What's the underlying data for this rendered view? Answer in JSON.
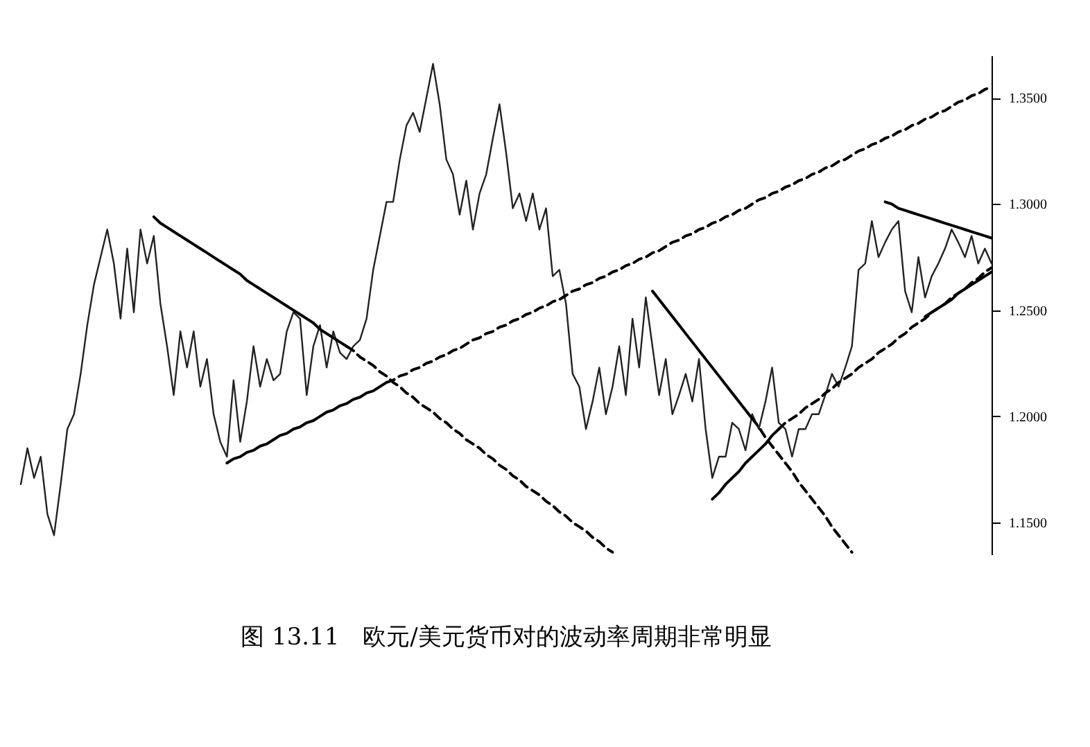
{
  "chart_data": {
    "type": "line",
    "title": "图 13.11　欧元/美元货币对的波动率周期非常明显",
    "categories": [
      null,
      null,
      null,
      null,
      null,
      null,
      null,
      null,
      null,
      null,
      null,
      null,
      null,
      null,
      null,
      null,
      null,
      null,
      null,
      null,
      null,
      null,
      null,
      null,
      null,
      null,
      null,
      null,
      null,
      null,
      null,
      null,
      null,
      null,
      null,
      null,
      null,
      null,
      null,
      null,
      null,
      null,
      null,
      null,
      null,
      null,
      null,
      null,
      null,
      null,
      null,
      null,
      null,
      null,
      null,
      null,
      null,
      null,
      null,
      null,
      null,
      null,
      null,
      null,
      null,
      null,
      null,
      null,
      null,
      null,
      null,
      null,
      null,
      null,
      null,
      null,
      null,
      null,
      null,
      null,
      null,
      null,
      null,
      null,
      null,
      null,
      null,
      null,
      null,
      null,
      null,
      null,
      null,
      null,
      null,
      null,
      null,
      null,
      null,
      null,
      null,
      null,
      null,
      null,
      null,
      null,
      null,
      null,
      null,
      null,
      null,
      null,
      null,
      null,
      null,
      null,
      null,
      null,
      null,
      null,
      null,
      null,
      null,
      null,
      null,
      null,
      null,
      null,
      null,
      null,
      null,
      null,
      null,
      null,
      null,
      null,
      null,
      null,
      null,
      null,
      null,
      null,
      null,
      null,
      null,
      null,
      null
    ],
    "series": [
      {
        "color": "#222222",
        "line_style": "solid",
        "values": [
          1.168,
          1.185,
          1.171,
          1.181,
          1.154,
          1.144,
          1.168,
          1.194,
          1.201,
          1.22,
          1.243,
          1.262,
          1.275,
          1.288,
          1.272,
          1.246,
          1.279,
          1.249,
          1.288,
          1.272,
          1.285,
          1.253,
          1.233,
          1.21,
          1.24,
          1.223,
          1.24,
          1.214,
          1.227,
          1.201,
          1.188,
          1.181,
          1.217,
          1.188,
          1.207,
          1.233,
          1.214,
          1.227,
          1.217,
          1.22,
          1.24,
          1.249,
          1.246,
          1.21,
          1.233,
          1.243,
          1.223,
          1.24,
          1.23,
          1.227,
          1.233,
          1.236,
          1.246,
          1.269,
          1.285,
          1.301,
          1.301,
          1.321,
          1.337,
          1.343,
          1.334,
          1.35,
          1.366,
          1.347,
          1.321,
          1.314,
          1.295,
          1.311,
          1.288,
          1.305,
          1.314,
          1.331,
          1.347,
          1.324,
          1.298,
          1.305,
          1.292,
          1.305,
          1.288,
          1.298,
          1.266,
          1.269,
          1.253,
          1.22,
          1.214,
          1.194,
          1.207,
          1.223,
          1.201,
          1.214,
          1.233,
          1.21,
          1.246,
          1.223,
          1.256,
          1.233,
          1.21,
          1.227,
          1.201,
          1.21,
          1.22,
          1.207,
          1.227,
          1.194,
          1.171,
          1.181,
          1.181,
          1.197,
          1.194,
          1.184,
          1.201,
          1.194,
          1.207,
          1.223,
          1.197,
          1.194,
          1.181,
          1.194,
          1.194,
          1.201,
          1.201,
          1.21,
          1.22,
          1.214,
          1.223,
          1.233,
          1.269,
          1.272,
          1.292,
          1.275,
          1.282,
          1.288,
          1.292,
          1.259,
          1.249,
          1.275,
          1.256,
          1.266,
          1.272,
          1.279,
          1.288,
          1.282,
          1.275,
          1.285,
          1.272,
          1.279,
          1.272
        ]
      },
      {
        "color": "#000000",
        "line_style": "solid",
        "values": [
          null,
          null,
          null,
          null,
          null,
          null,
          null,
          null,
          null,
          null,
          null,
          null,
          null,
          null,
          null,
          null,
          null,
          null,
          null,
          null,
          1.294,
          1.291,
          1.289,
          1.287,
          1.285,
          1.283,
          1.281,
          1.279,
          1.277,
          1.275,
          1.273,
          1.271,
          1.269,
          1.267,
          1.264,
          1.262,
          1.26,
          1.258,
          1.256,
          1.254,
          1.252,
          1.25,
          1.248,
          1.246,
          1.244,
          1.241,
          1.239,
          1.237,
          1.235,
          1.233,
          null,
          null,
          null,
          null,
          null,
          null,
          null,
          null,
          null,
          null,
          null,
          null,
          null,
          null,
          null,
          null,
          null,
          null,
          null,
          null,
          null,
          null,
          null,
          null,
          null,
          null,
          null,
          null,
          null,
          null,
          null,
          null,
          null,
          null,
          null,
          null,
          null,
          null,
          null,
          null,
          null,
          null,
          null,
          null,
          null,
          null,
          null,
          null,
          null,
          null,
          null,
          null,
          null,
          null,
          null,
          null,
          null,
          null,
          null,
          null,
          null,
          null,
          null,
          null,
          null,
          null,
          null,
          null,
          null,
          null,
          null,
          null,
          null,
          null,
          null,
          null,
          null,
          null,
          null,
          null,
          null,
          null,
          null,
          null,
          null,
          null,
          null,
          null,
          null,
          null,
          null,
          null,
          null,
          null,
          null,
          null,
          null
        ]
      },
      {
        "color": "#000000",
        "line_style": "solid",
        "values": [
          null,
          null,
          null,
          null,
          null,
          null,
          null,
          null,
          null,
          null,
          null,
          null,
          null,
          null,
          null,
          null,
          null,
          null,
          null,
          null,
          null,
          null,
          null,
          null,
          null,
          null,
          null,
          null,
          null,
          null,
          null,
          1.178,
          1.18,
          1.181,
          1.183,
          1.184,
          1.186,
          1.187,
          1.189,
          1.191,
          1.192,
          1.194,
          1.195,
          1.197,
          1.198,
          1.2,
          1.202,
          1.203,
          1.205,
          1.206,
          1.208,
          1.209,
          1.211,
          1.212,
          1.214,
          1.216,
          null,
          null,
          null,
          null,
          null,
          null,
          null,
          null,
          null,
          null,
          null,
          null,
          null,
          null,
          null,
          null,
          null,
          null,
          null,
          null,
          null,
          null,
          null,
          null,
          null,
          null,
          null,
          null,
          null,
          null,
          null,
          null,
          null,
          null,
          null,
          null,
          null,
          null,
          null,
          null,
          null,
          null,
          null,
          null,
          null,
          null,
          null,
          null,
          null,
          null,
          null,
          null,
          null,
          null,
          null,
          null,
          null,
          null,
          null,
          null,
          null,
          null,
          null,
          null,
          null,
          null,
          null,
          null,
          null,
          null,
          null,
          null,
          null,
          null,
          null,
          null,
          null,
          null,
          null,
          null,
          null,
          null,
          null,
          null,
          null,
          null,
          null,
          null,
          null,
          null,
          null
        ]
      },
      {
        "color": "#000000",
        "line_style": "dashed",
        "values": [
          null,
          null,
          null,
          null,
          null,
          null,
          null,
          null,
          null,
          null,
          null,
          null,
          null,
          null,
          null,
          null,
          null,
          null,
          null,
          null,
          null,
          null,
          null,
          null,
          null,
          null,
          null,
          null,
          null,
          null,
          null,
          null,
          null,
          null,
          null,
          null,
          null,
          null,
          null,
          null,
          null,
          null,
          null,
          null,
          null,
          null,
          null,
          null,
          null,
          1.233,
          1.231,
          1.228,
          1.226,
          1.224,
          1.221,
          1.219,
          1.216,
          1.214,
          1.211,
          1.209,
          1.206,
          1.204,
          1.202,
          1.199,
          1.197,
          1.194,
          1.192,
          1.189,
          1.187,
          1.185,
          1.182,
          1.18,
          1.177,
          1.175,
          1.172,
          1.17,
          1.167,
          1.165,
          1.163,
          1.16,
          1.158,
          1.155,
          1.153,
          1.15,
          1.148,
          1.146,
          1.143,
          1.141,
          1.138,
          1.136,
          null,
          null,
          null,
          null,
          null,
          null,
          null,
          null,
          null,
          null,
          null,
          null,
          null,
          null,
          null,
          null,
          null,
          null,
          null,
          null,
          null,
          null,
          null,
          null,
          null,
          null,
          null,
          null,
          null,
          null,
          null,
          null,
          null,
          null,
          null,
          null,
          null,
          null,
          null,
          null,
          null,
          null,
          null,
          null,
          null,
          null,
          null,
          null,
          null,
          null,
          null,
          null,
          null,
          null,
          null,
          null,
          null
        ]
      },
      {
        "color": "#000000",
        "line_style": "dashed",
        "values": [
          null,
          null,
          null,
          null,
          null,
          null,
          null,
          null,
          null,
          null,
          null,
          null,
          null,
          null,
          null,
          null,
          null,
          null,
          null,
          null,
          null,
          null,
          null,
          null,
          null,
          null,
          null,
          null,
          null,
          null,
          null,
          null,
          null,
          null,
          null,
          null,
          null,
          null,
          null,
          null,
          null,
          null,
          null,
          null,
          null,
          null,
          null,
          null,
          null,
          null,
          null,
          null,
          null,
          null,
          null,
          1.216,
          1.217,
          1.219,
          1.22,
          1.222,
          1.223,
          1.225,
          1.226,
          1.228,
          1.229,
          1.231,
          1.232,
          1.234,
          1.236,
          1.237,
          1.239,
          1.24,
          1.242,
          1.243,
          1.245,
          1.246,
          1.248,
          1.249,
          1.251,
          1.252,
          1.254,
          1.255,
          1.257,
          1.259,
          1.26,
          1.262,
          1.263,
          1.265,
          1.266,
          1.268,
          1.269,
          1.271,
          1.272,
          1.274,
          1.275,
          1.277,
          1.278,
          1.28,
          1.282,
          1.283,
          1.285,
          1.286,
          1.288,
          1.289,
          1.291,
          1.292,
          1.294,
          1.295,
          1.297,
          1.298,
          1.3,
          1.302,
          1.303,
          1.305,
          1.306,
          1.308,
          1.309,
          1.311,
          1.312,
          1.314,
          1.315,
          1.317,
          1.318,
          1.32,
          1.321,
          1.323,
          1.325,
          1.326,
          1.328,
          1.329,
          1.331,
          1.332,
          1.334,
          1.335,
          1.337,
          1.338,
          1.34,
          1.341,
          1.343,
          1.344,
          1.346,
          1.348,
          1.349,
          1.351,
          1.352,
          1.354,
          1.355
        ]
      },
      {
        "color": "#000000",
        "line_style": "solid",
        "values": [
          null,
          null,
          null,
          null,
          null,
          null,
          null,
          null,
          null,
          null,
          null,
          null,
          null,
          null,
          null,
          null,
          null,
          null,
          null,
          null,
          null,
          null,
          null,
          null,
          null,
          null,
          null,
          null,
          null,
          null,
          null,
          null,
          null,
          null,
          null,
          null,
          null,
          null,
          null,
          null,
          null,
          null,
          null,
          null,
          null,
          null,
          null,
          null,
          null,
          null,
          null,
          null,
          null,
          null,
          null,
          null,
          null,
          null,
          null,
          null,
          null,
          null,
          null,
          null,
          null,
          null,
          null,
          null,
          null,
          null,
          null,
          null,
          null,
          null,
          null,
          null,
          null,
          null,
          null,
          null,
          null,
          null,
          null,
          null,
          null,
          null,
          null,
          null,
          null,
          null,
          null,
          null,
          null,
          null,
          null,
          1.259,
          1.255,
          1.251,
          1.247,
          1.243,
          1.239,
          1.235,
          1.231,
          1.227,
          1.223,
          1.219,
          1.215,
          1.211,
          1.207,
          1.203,
          1.199,
          null,
          null,
          null,
          null,
          null,
          null,
          null,
          null,
          null,
          null,
          null,
          null,
          null,
          null,
          null,
          null,
          null,
          null,
          null,
          null,
          null,
          null,
          null,
          null,
          null,
          null,
          null,
          null,
          null,
          null,
          null,
          null,
          null,
          null,
          null,
          null
        ]
      },
      {
        "color": "#000000",
        "line_style": "dashed",
        "values": [
          null,
          null,
          null,
          null,
          null,
          null,
          null,
          null,
          null,
          null,
          null,
          null,
          null,
          null,
          null,
          null,
          null,
          null,
          null,
          null,
          null,
          null,
          null,
          null,
          null,
          null,
          null,
          null,
          null,
          null,
          null,
          null,
          null,
          null,
          null,
          null,
          null,
          null,
          null,
          null,
          null,
          null,
          null,
          null,
          null,
          null,
          null,
          null,
          null,
          null,
          null,
          null,
          null,
          null,
          null,
          null,
          null,
          null,
          null,
          null,
          null,
          null,
          null,
          null,
          null,
          null,
          null,
          null,
          null,
          null,
          null,
          null,
          null,
          null,
          null,
          null,
          null,
          null,
          null,
          null,
          null,
          null,
          null,
          null,
          null,
          null,
          null,
          null,
          null,
          null,
          null,
          null,
          null,
          null,
          null,
          null,
          null,
          null,
          null,
          null,
          null,
          null,
          null,
          null,
          null,
          null,
          null,
          null,
          null,
          null,
          1.199,
          1.195,
          1.19,
          1.186,
          1.182,
          1.178,
          1.174,
          1.169,
          1.165,
          1.161,
          1.157,
          1.153,
          1.148,
          1.144,
          1.14,
          1.136,
          null,
          null,
          null,
          null,
          null,
          null,
          null,
          null,
          null,
          null,
          null,
          null,
          null,
          null,
          null,
          null,
          null,
          null,
          null,
          null,
          null
        ]
      },
      {
        "color": "#000000",
        "line_style": "solid",
        "values": [
          null,
          null,
          null,
          null,
          null,
          null,
          null,
          null,
          null,
          null,
          null,
          null,
          null,
          null,
          null,
          null,
          null,
          null,
          null,
          null,
          null,
          null,
          null,
          null,
          null,
          null,
          null,
          null,
          null,
          null,
          null,
          null,
          null,
          null,
          null,
          null,
          null,
          null,
          null,
          null,
          null,
          null,
          null,
          null,
          null,
          null,
          null,
          null,
          null,
          null,
          null,
          null,
          null,
          null,
          null,
          null,
          null,
          null,
          null,
          null,
          null,
          null,
          null,
          null,
          null,
          null,
          null,
          null,
          null,
          null,
          null,
          null,
          null,
          null,
          null,
          null,
          null,
          null,
          null,
          null,
          null,
          null,
          null,
          null,
          null,
          null,
          null,
          null,
          null,
          null,
          null,
          null,
          null,
          null,
          null,
          null,
          null,
          null,
          null,
          null,
          null,
          null,
          null,
          null,
          1.161,
          1.164,
          1.168,
          1.171,
          1.174,
          1.178,
          1.181,
          1.184,
          1.187,
          1.191,
          1.194,
          null,
          null,
          null,
          null,
          null,
          null,
          null,
          null,
          null,
          null,
          null,
          null,
          null,
          null,
          null,
          null,
          null,
          null,
          null,
          null,
          null,
          null,
          null,
          null,
          null,
          null,
          null,
          null,
          null,
          null,
          null,
          null
        ]
      },
      {
        "color": "#000000",
        "line_style": "dashed",
        "values": [
          null,
          null,
          null,
          null,
          null,
          null,
          null,
          null,
          null,
          null,
          null,
          null,
          null,
          null,
          null,
          null,
          null,
          null,
          null,
          null,
          null,
          null,
          null,
          null,
          null,
          null,
          null,
          null,
          null,
          null,
          null,
          null,
          null,
          null,
          null,
          null,
          null,
          null,
          null,
          null,
          null,
          null,
          null,
          null,
          null,
          null,
          null,
          null,
          null,
          null,
          null,
          null,
          null,
          null,
          null,
          null,
          null,
          null,
          null,
          null,
          null,
          null,
          null,
          null,
          null,
          null,
          null,
          null,
          null,
          null,
          null,
          null,
          null,
          null,
          null,
          null,
          null,
          null,
          null,
          null,
          null,
          null,
          null,
          null,
          null,
          null,
          null,
          null,
          null,
          null,
          null,
          null,
          null,
          null,
          null,
          null,
          null,
          null,
          null,
          null,
          null,
          null,
          null,
          null,
          null,
          null,
          null,
          null,
          null,
          null,
          null,
          null,
          null,
          null,
          1.194,
          1.197,
          1.199,
          1.201,
          1.204,
          1.206,
          1.208,
          1.211,
          1.213,
          1.216,
          1.218,
          1.22,
          1.223,
          1.225,
          1.227,
          1.23,
          1.232,
          1.234,
          1.237,
          1.239,
          1.242,
          1.244,
          1.246,
          1.249,
          1.251,
          1.253,
          1.256,
          1.258,
          1.26,
          1.263,
          1.265,
          1.268,
          1.27
        ]
      },
      {
        "color": "#000000",
        "line_style": "solid",
        "values": [
          null,
          null,
          null,
          null,
          null,
          null,
          null,
          null,
          null,
          null,
          null,
          null,
          null,
          null,
          null,
          null,
          null,
          null,
          null,
          null,
          null,
          null,
          null,
          null,
          null,
          null,
          null,
          null,
          null,
          null,
          null,
          null,
          null,
          null,
          null,
          null,
          null,
          null,
          null,
          null,
          null,
          null,
          null,
          null,
          null,
          null,
          null,
          null,
          null,
          null,
          null,
          null,
          null,
          null,
          null,
          null,
          null,
          null,
          null,
          null,
          null,
          null,
          null,
          null,
          null,
          null,
          null,
          null,
          null,
          null,
          null,
          null,
          null,
          null,
          null,
          null,
          null,
          null,
          null,
          null,
          null,
          null,
          null,
          null,
          null,
          null,
          null,
          null,
          null,
          null,
          null,
          null,
          null,
          null,
          null,
          null,
          null,
          null,
          null,
          null,
          null,
          null,
          null,
          null,
          null,
          null,
          null,
          null,
          null,
          null,
          null,
          null,
          null,
          null,
          null,
          null,
          null,
          null,
          null,
          null,
          null,
          null,
          null,
          null,
          null,
          null,
          null,
          null,
          null,
          null,
          1.301,
          1.3,
          1.298,
          1.297,
          1.296,
          1.295,
          1.294,
          1.293,
          1.292,
          1.291,
          1.29,
          1.289,
          1.288,
          1.287,
          1.286,
          1.285,
          1.284
        ]
      },
      {
        "color": "#000000",
        "line_style": "solid",
        "values": [
          null,
          null,
          null,
          null,
          null,
          null,
          null,
          null,
          null,
          null,
          null,
          null,
          null,
          null,
          null,
          null,
          null,
          null,
          null,
          null,
          null,
          null,
          null,
          null,
          null,
          null,
          null,
          null,
          null,
          null,
          null,
          null,
          null,
          null,
          null,
          null,
          null,
          null,
          null,
          null,
          null,
          null,
          null,
          null,
          null,
          null,
          null,
          null,
          null,
          null,
          null,
          null,
          null,
          null,
          null,
          null,
          null,
          null,
          null,
          null,
          null,
          null,
          null,
          null,
          null,
          null,
          null,
          null,
          null,
          null,
          null,
          null,
          null,
          null,
          null,
          null,
          null,
          null,
          null,
          null,
          null,
          null,
          null,
          null,
          null,
          null,
          null,
          null,
          null,
          null,
          null,
          null,
          null,
          null,
          null,
          null,
          null,
          null,
          null,
          null,
          null,
          null,
          null,
          null,
          null,
          null,
          null,
          null,
          null,
          null,
          null,
          null,
          null,
          null,
          null,
          null,
          null,
          null,
          null,
          null,
          null,
          null,
          null,
          null,
          null,
          null,
          null,
          null,
          null,
          null,
          null,
          null,
          null,
          null,
          null,
          null,
          1.247,
          1.249,
          1.251,
          1.253,
          1.255,
          1.258,
          1.26,
          1.262,
          1.264,
          1.266,
          1.268
        ]
      }
    ],
    "ylim": [
      1.135,
      1.37
    ],
    "yticks": [
      {
        "value": 1.15,
        "label": "1.1500"
      },
      {
        "value": 1.2,
        "label": "1.2000"
      },
      {
        "value": 1.25,
        "label": "1.2500"
      },
      {
        "value": 1.3,
        "label": "1.3000"
      },
      {
        "value": 1.35,
        "label": "1.3500"
      }
    ],
    "tick_labels": "y",
    "grid": false
  }
}
